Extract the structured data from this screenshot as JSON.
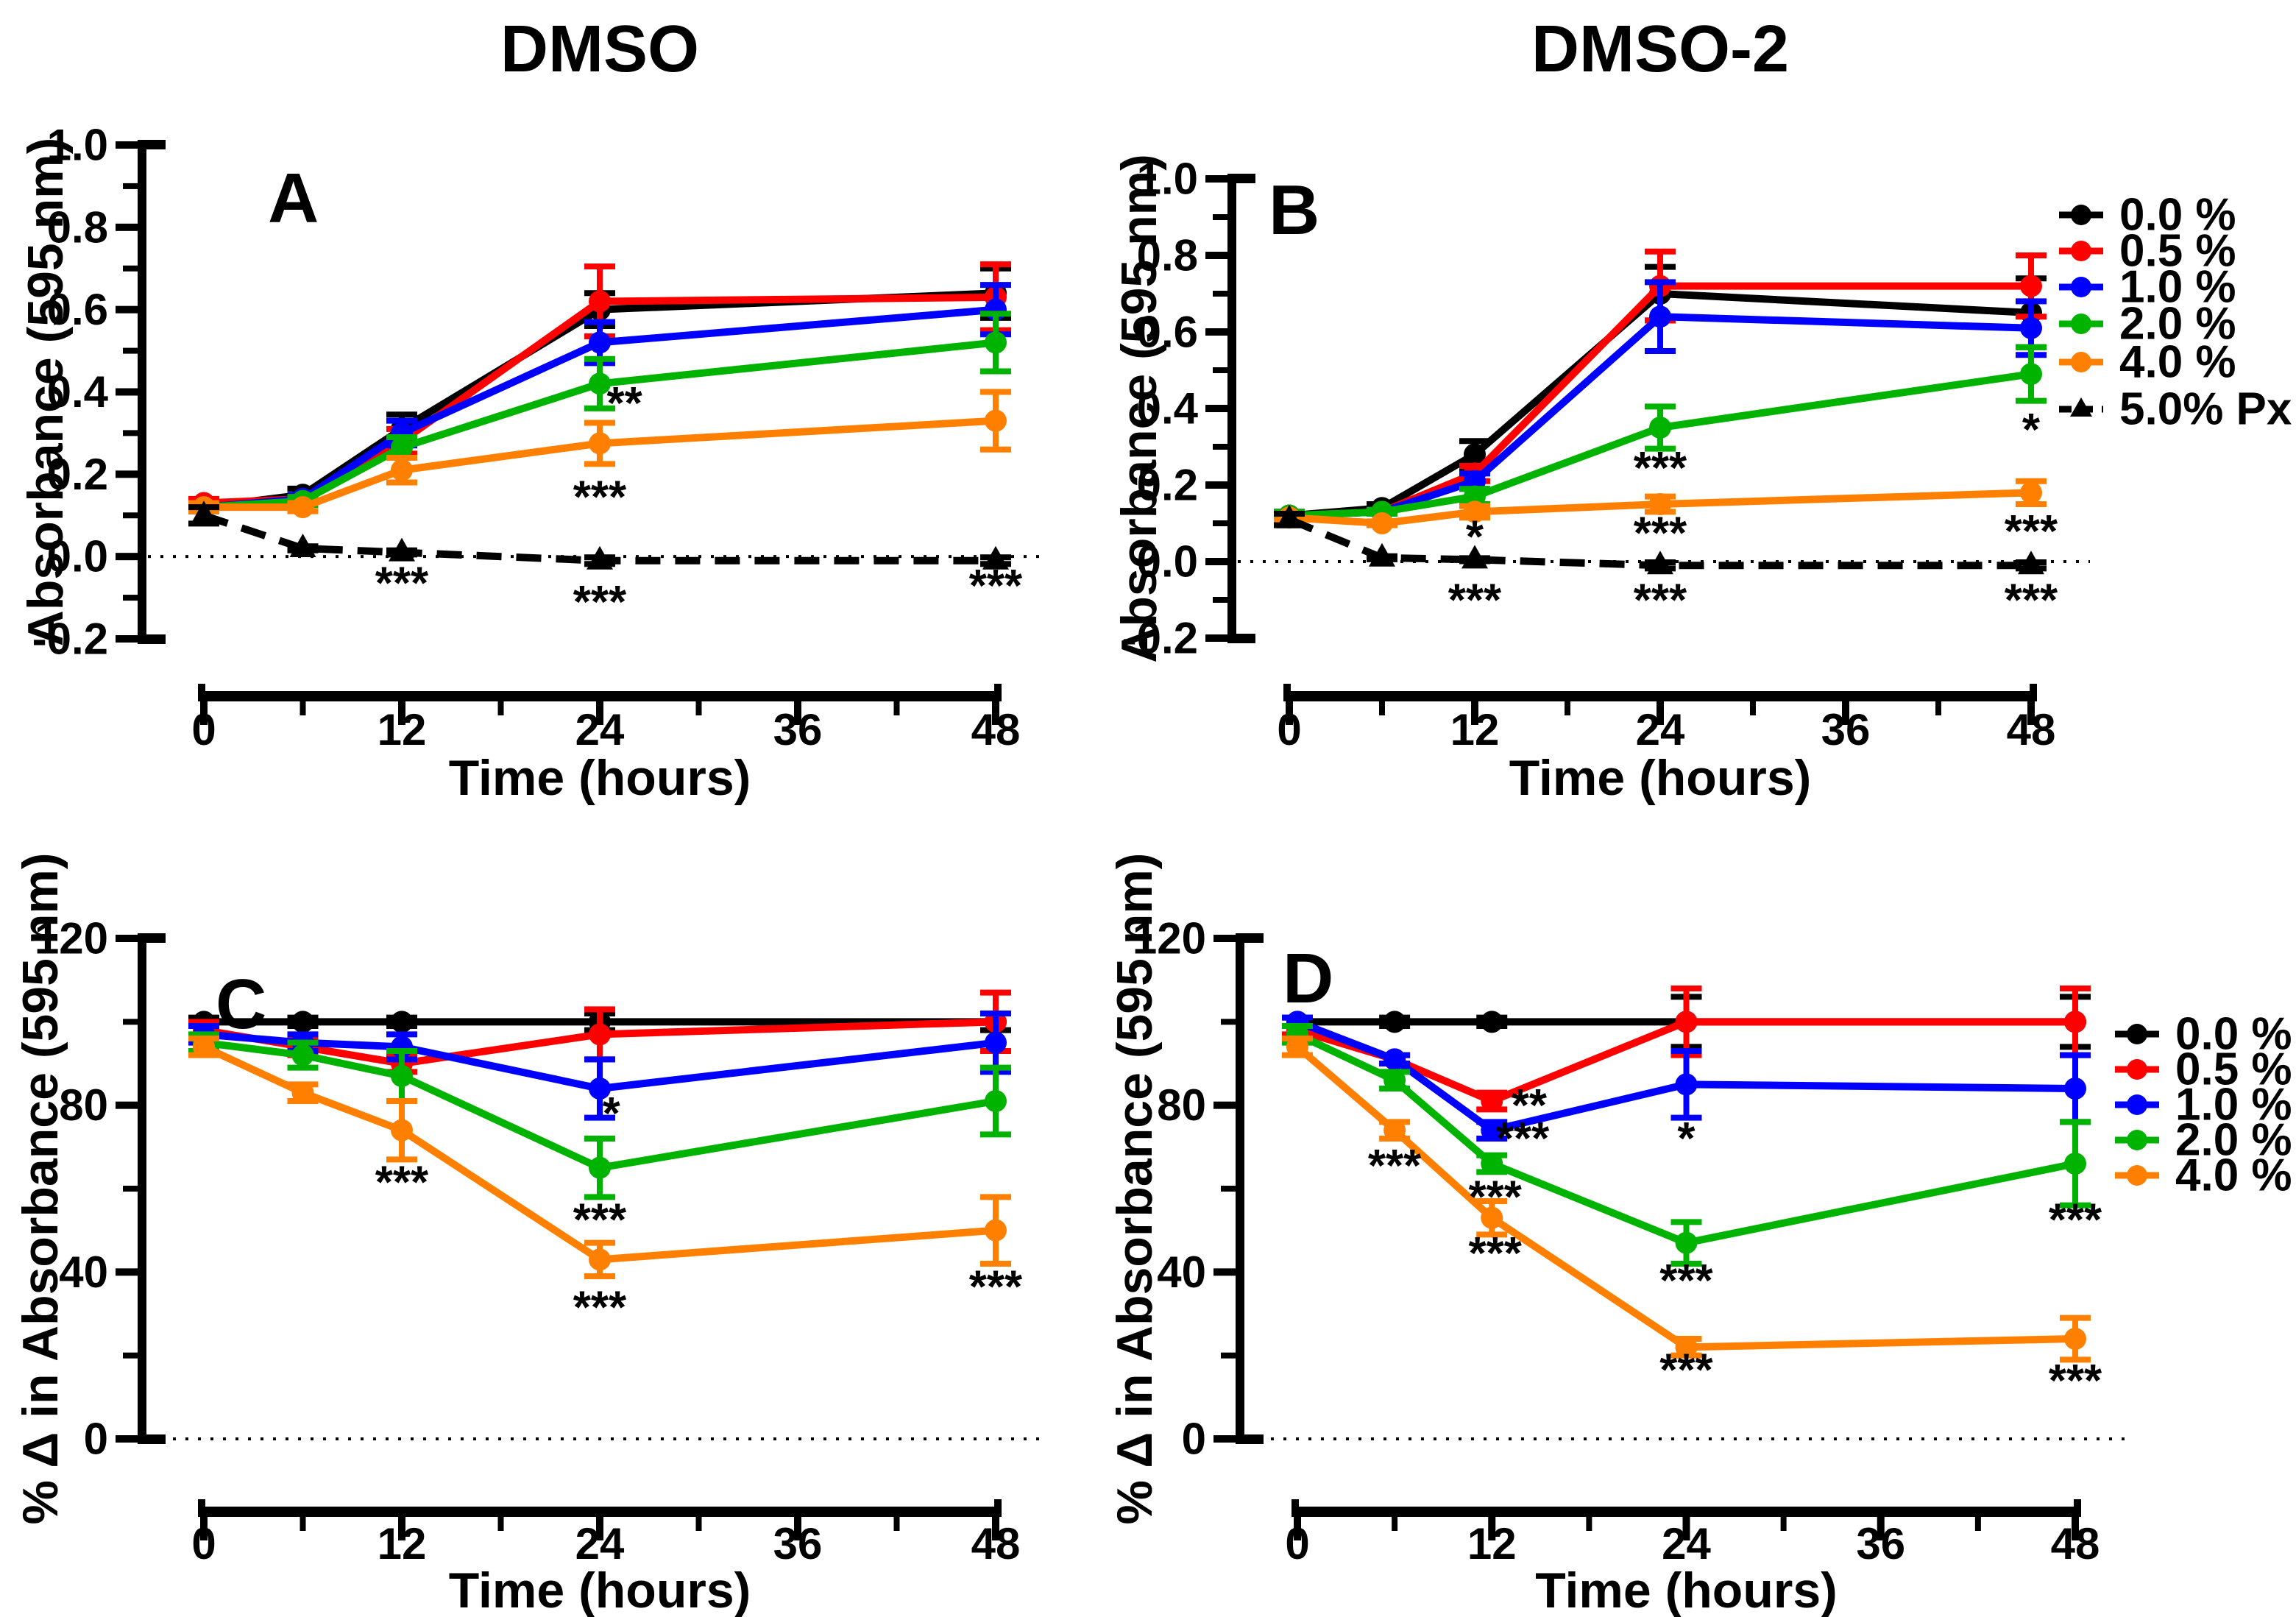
{
  "figure": {
    "column_titles": [
      {
        "label": "DMSO"
      },
      {
        "label": "DMSO-2"
      }
    ],
    "background": "#FFFFFF",
    "accent_colors": {
      "black": "#000000",
      "red": "#FF0000",
      "blue": "#0000FF",
      "green": "#00B300",
      "orange": "#FF8000"
    }
  },
  "legends": {
    "top": {
      "entries": [
        {
          "label": "0.0 %",
          "color": "#000000",
          "marker": "circle",
          "dashed": false
        },
        {
          "label": "0.5 %",
          "color": "#FF0000",
          "marker": "circle",
          "dashed": false
        },
        {
          "label": "1.0 %",
          "color": "#0000FF",
          "marker": "circle",
          "dashed": false
        },
        {
          "label": "2.0 %",
          "color": "#00B300",
          "marker": "circle",
          "dashed": false
        },
        {
          "label": "4.0 %",
          "color": "#FF8000",
          "marker": "circle",
          "dashed": false
        },
        {
          "label": "5.0% Px",
          "color": "#000000",
          "marker": "triangle",
          "dashed": true
        }
      ]
    },
    "bottom": {
      "entries": [
        {
          "label": "0.0 %",
          "color": "#000000",
          "marker": "circle",
          "dashed": false
        },
        {
          "label": "0.5 %",
          "color": "#FF0000",
          "marker": "circle",
          "dashed": false
        },
        {
          "label": "1.0 %",
          "color": "#0000FF",
          "marker": "circle",
          "dashed": false
        },
        {
          "label": "2.0 %",
          "color": "#00B300",
          "marker": "circle",
          "dashed": false
        },
        {
          "label": "4.0 %",
          "color": "#FF8000",
          "marker": "circle",
          "dashed": false
        }
      ]
    }
  },
  "chart_data": [
    {
      "type": "line",
      "panel": "A",
      "column": "DMSO",
      "xlabel": "Time (hours)",
      "ylabel": "Absorbance (595 nm)",
      "xlim": [
        0,
        48
      ],
      "ylim": [
        -0.2,
        1.0
      ],
      "x_ticks": [
        {
          "v": 0,
          "label": "0"
        },
        {
          "v": 12,
          "label": "12"
        },
        {
          "v": 24,
          "label": "24"
        },
        {
          "v": 36,
          "label": "36"
        },
        {
          "v": 48,
          "label": "48"
        }
      ],
      "x_minor_ticks": [
        6,
        18,
        30,
        42
      ],
      "y_ticks": [
        {
          "v": -0.2,
          "label": "-0.2"
        },
        {
          "v": 0.0,
          "label": "0.0"
        },
        {
          "v": 0.2,
          "label": "0.2"
        },
        {
          "v": 0.4,
          "label": "0.4"
        },
        {
          "v": 0.6,
          "label": "0.6"
        },
        {
          "v": 0.8,
          "label": "0.8"
        },
        {
          "v": 1.0,
          "label": "1.0"
        }
      ],
      "y_minor_ticks": [
        -0.1,
        0.1,
        0.3,
        0.5,
        0.7,
        0.9
      ],
      "zero_line": 0.0,
      "x": [
        0,
        6,
        12,
        24,
        48
      ],
      "series": [
        {
          "name": "0.0 %",
          "color": "#000000",
          "marker": "circle",
          "dashed": false,
          "values": [
            0.12,
            0.15,
            0.31,
            0.6,
            0.64
          ],
          "errors": [
            0.01,
            0.015,
            0.035,
            0.04,
            0.06
          ]
        },
        {
          "name": "0.5 %",
          "color": "#FF0000",
          "marker": "circle",
          "dashed": false,
          "values": [
            0.13,
            0.14,
            0.28,
            0.62,
            0.63
          ],
          "errors": [
            0.01,
            0.01,
            0.03,
            0.085,
            0.08
          ]
        },
        {
          "name": "1.0 %",
          "color": "#0000FF",
          "marker": "circle",
          "dashed": false,
          "values": [
            0.12,
            0.14,
            0.3,
            0.52,
            0.6
          ],
          "errors": [
            0.01,
            0.01,
            0.03,
            0.05,
            0.06
          ]
        },
        {
          "name": "2.0 %",
          "color": "#00B300",
          "marker": "circle",
          "dashed": false,
          "values": [
            0.12,
            0.135,
            0.265,
            0.42,
            0.52
          ],
          "errors": [
            0.01,
            0.01,
            0.025,
            0.06,
            0.07
          ]
        },
        {
          "name": "4.0 %",
          "color": "#FF8000",
          "marker": "circle",
          "dashed": false,
          "values": [
            0.12,
            0.12,
            0.21,
            0.275,
            0.33
          ],
          "errors": [
            0.01,
            0.01,
            0.03,
            0.05,
            0.07
          ]
        },
        {
          "name": "5.0% Px",
          "color": "#000000",
          "marker": "triangle",
          "dashed": true,
          "values": [
            0.1,
            0.02,
            0.01,
            -0.01,
            -0.01
          ],
          "errors": [
            0.02,
            0.005,
            0.005,
            0.008,
            0.008
          ]
        }
      ],
      "annotations": [
        {
          "x": 25.5,
          "y": 0.378,
          "text": "**"
        },
        {
          "x": 24,
          "y": 0.15,
          "text": "***"
        },
        {
          "x": 12,
          "y": -0.06,
          "text": "***"
        },
        {
          "x": 24,
          "y": -0.105,
          "text": "***"
        },
        {
          "x": 48,
          "y": -0.066,
          "text": "***"
        }
      ]
    },
    {
      "type": "line",
      "panel": "B",
      "column": "DMSO-2",
      "xlabel": "Time (hours)",
      "ylabel": "Absorbance (595 nm)",
      "xlim": [
        0,
        48
      ],
      "ylim": [
        -0.2,
        1.0
      ],
      "x_ticks": [
        {
          "v": 0,
          "label": "0"
        },
        {
          "v": 12,
          "label": "12"
        },
        {
          "v": 24,
          "label": "24"
        },
        {
          "v": 36,
          "label": "36"
        },
        {
          "v": 48,
          "label": "48"
        }
      ],
      "x_minor_ticks": [
        6,
        18,
        30,
        42
      ],
      "y_ticks": [
        {
          "v": -0.2,
          "label": "-0.2"
        },
        {
          "v": 0.0,
          "label": "0.0"
        },
        {
          "v": 0.2,
          "label": "0.2"
        },
        {
          "v": 0.4,
          "label": "0.4"
        },
        {
          "v": 0.6,
          "label": "0.6"
        },
        {
          "v": 0.8,
          "label": "0.8"
        },
        {
          "v": 1.0,
          "label": "1.0"
        }
      ],
      "y_minor_ticks": [
        -0.1,
        0.1,
        0.3,
        0.5,
        0.7,
        0.9
      ],
      "zero_line": 0.0,
      "x": [
        0,
        6,
        12,
        24,
        48
      ],
      "series": [
        {
          "name": "0.0 %",
          "color": "#000000",
          "marker": "circle",
          "dashed": false,
          "values": [
            0.12,
            0.14,
            0.28,
            0.7,
            0.65
          ],
          "errors": [
            0.01,
            0.01,
            0.035,
            0.07,
            0.09
          ]
        },
        {
          "name": "0.5 %",
          "color": "#FF0000",
          "marker": "circle",
          "dashed": false,
          "values": [
            0.12,
            0.13,
            0.23,
            0.72,
            0.72
          ],
          "errors": [
            0.01,
            0.005,
            0.02,
            0.09,
            0.08
          ]
        },
        {
          "name": "1.0 %",
          "color": "#0000FF",
          "marker": "circle",
          "dashed": false,
          "values": [
            0.12,
            0.13,
            0.21,
            0.64,
            0.61
          ],
          "errors": [
            0.01,
            0.005,
            0.02,
            0.09,
            0.07
          ]
        },
        {
          "name": "2.0 %",
          "color": "#00B300",
          "marker": "circle",
          "dashed": false,
          "values": [
            0.12,
            0.13,
            0.17,
            0.35,
            0.49
          ],
          "errors": [
            0.01,
            0.005,
            0.02,
            0.055,
            0.07
          ]
        },
        {
          "name": "4.0 %",
          "color": "#FF8000",
          "marker": "circle",
          "dashed": false,
          "values": [
            0.115,
            0.1,
            0.13,
            0.15,
            0.18
          ],
          "errors": [
            0.008,
            0.005,
            0.015,
            0.02,
            0.03
          ]
        },
        {
          "name": "5.0% Px",
          "color": "#000000",
          "marker": "triangle",
          "dashed": true,
          "values": [
            0.11,
            0.01,
            0.005,
            -0.01,
            -0.01
          ],
          "errors": [
            0.015,
            0.004,
            0.004,
            0.008,
            0.008
          ]
        }
      ],
      "annotations": [
        {
          "x": 12,
          "y": 0.07,
          "text": "*"
        },
        {
          "x": 12,
          "y": -0.095,
          "text": "***"
        },
        {
          "x": 24,
          "y": 0.25,
          "text": "***"
        },
        {
          "x": 24,
          "y": 0.08,
          "text": "***"
        },
        {
          "x": 24,
          "y": -0.095,
          "text": "***"
        },
        {
          "x": 48,
          "y": 0.35,
          "text": "*"
        },
        {
          "x": 48,
          "y": 0.085,
          "text": "***"
        },
        {
          "x": 48,
          "y": -0.095,
          "text": "***"
        }
      ]
    },
    {
      "type": "line",
      "panel": "C",
      "column": "DMSO",
      "xlabel": "Time (hours)",
      "ylabel": "% Δ in Absorbance (595 nm)",
      "xlim": [
        0,
        48
      ],
      "ylim": [
        0,
        120
      ],
      "x_ticks": [
        {
          "v": 0,
          "label": "0"
        },
        {
          "v": 12,
          "label": "12"
        },
        {
          "v": 24,
          "label": "24"
        },
        {
          "v": 36,
          "label": "36"
        },
        {
          "v": 48,
          "label": "48"
        }
      ],
      "x_minor_ticks": [
        6,
        18,
        30,
        42
      ],
      "y_ticks": [
        {
          "v": 0,
          "label": "0"
        },
        {
          "v": 40,
          "label": "40"
        },
        {
          "v": 80,
          "label": "80"
        },
        {
          "v": 120,
          "label": "120"
        }
      ],
      "y_minor_ticks": [
        20,
        60,
        100
      ],
      "zero_line": 0,
      "x": [
        0,
        6,
        12,
        24,
        48
      ],
      "series": [
        {
          "name": "0.0 %",
          "color": "#000000",
          "marker": "circle",
          "dashed": false,
          "values": [
            100,
            100,
            100,
            100,
            100
          ],
          "errors": [
            1,
            1,
            1,
            2,
            2
          ]
        },
        {
          "name": "0.5 %",
          "color": "#FF0000",
          "marker": "circle",
          "dashed": false,
          "values": [
            98,
            94,
            90,
            97,
            100
          ],
          "errors": [
            2,
            2,
            2,
            6,
            7
          ]
        },
        {
          "name": "1.0 %",
          "color": "#0000FF",
          "marker": "circle",
          "dashed": false,
          "values": [
            97,
            95,
            94,
            84,
            95
          ],
          "errors": [
            2,
            2,
            3,
            7,
            7
          ]
        },
        {
          "name": "2.0 %",
          "color": "#00B300",
          "marker": "circle",
          "dashed": false,
          "values": [
            95,
            92,
            87,
            65,
            81
          ],
          "errors": [
            2,
            3,
            6,
            7,
            8
          ]
        },
        {
          "name": "4.0 %",
          "color": "#FF8000",
          "marker": "circle",
          "dashed": false,
          "values": [
            94,
            83,
            74,
            43,
            50
          ],
          "errors": [
            2,
            2,
            7,
            4,
            8
          ]
        }
      ],
      "annotations": [
        {
          "x": 12,
          "y": 62,
          "text": "***"
        },
        {
          "x": 24.7,
          "y": 78.5,
          "text": "*"
        },
        {
          "x": 24,
          "y": 53,
          "text": "***"
        },
        {
          "x": 24,
          "y": 32,
          "text": "***"
        },
        {
          "x": 48,
          "y": 37,
          "text": "***"
        }
      ]
    },
    {
      "type": "line",
      "panel": "D",
      "column": "DMSO-2",
      "xlabel": "Time (hours)",
      "ylabel": "% Δ in Absorbance (595 nm)",
      "xlim": [
        0,
        48
      ],
      "ylim": [
        0,
        120
      ],
      "x_ticks": [
        {
          "v": 0,
          "label": "0"
        },
        {
          "v": 12,
          "label": "12"
        },
        {
          "v": 24,
          "label": "24"
        },
        {
          "v": 36,
          "label": "36"
        },
        {
          "v": 48,
          "label": "48"
        }
      ],
      "x_minor_ticks": [
        6,
        18,
        30,
        42
      ],
      "y_ticks": [
        {
          "v": 0,
          "label": "0"
        },
        {
          "v": 40,
          "label": "40"
        },
        {
          "v": 80,
          "label": "80"
        },
        {
          "v": 120,
          "label": "120"
        }
      ],
      "y_minor_ticks": [
        20,
        60,
        100
      ],
      "zero_line": 0,
      "x": [
        0,
        6,
        12,
        24,
        48
      ],
      "series": [
        {
          "name": "0.0 %",
          "color": "#000000",
          "marker": "circle",
          "dashed": false,
          "values": [
            100,
            100,
            100,
            100,
            100
          ],
          "errors": [
            1,
            1,
            1,
            6,
            6
          ]
        },
        {
          "name": "0.5 %",
          "color": "#FF0000",
          "marker": "circle",
          "dashed": false,
          "values": [
            98,
            91,
            81,
            100,
            100
          ],
          "errors": [
            1,
            1,
            2,
            8,
            8
          ]
        },
        {
          "name": "1.0 %",
          "color": "#0000FF",
          "marker": "circle",
          "dashed": false,
          "values": [
            100,
            91,
            74,
            85,
            84
          ],
          "errors": [
            1,
            1,
            2,
            8,
            8
          ]
        },
        {
          "name": "2.0 %",
          "color": "#00B300",
          "marker": "circle",
          "dashed": false,
          "values": [
            97,
            86,
            66,
            47,
            66
          ],
          "errors": [
            2,
            2,
            2,
            5,
            10
          ]
        },
        {
          "name": "4.0 %",
          "color": "#FF8000",
          "marker": "circle",
          "dashed": false,
          "values": [
            94,
            74,
            53,
            22,
            24
          ],
          "errors": [
            2,
            2,
            4,
            2,
            5
          ]
        }
      ],
      "annotations": [
        {
          "x": 6,
          "y": 66,
          "text": "***"
        },
        {
          "x": 14.3,
          "y": 80.5,
          "text": "**"
        },
        {
          "x": 13.9,
          "y": 72.5,
          "text": "***"
        },
        {
          "x": 12.2,
          "y": 58.5,
          "text": "***"
        },
        {
          "x": 12.2,
          "y": 45,
          "text": "***"
        },
        {
          "x": 24,
          "y": 72.5,
          "text": "*"
        },
        {
          "x": 24,
          "y": 38.5,
          "text": "***"
        },
        {
          "x": 24,
          "y": 17,
          "text": "***"
        },
        {
          "x": 48,
          "y": 53,
          "text": "***"
        },
        {
          "x": 48,
          "y": 14.5,
          "text": "***"
        }
      ]
    }
  ]
}
